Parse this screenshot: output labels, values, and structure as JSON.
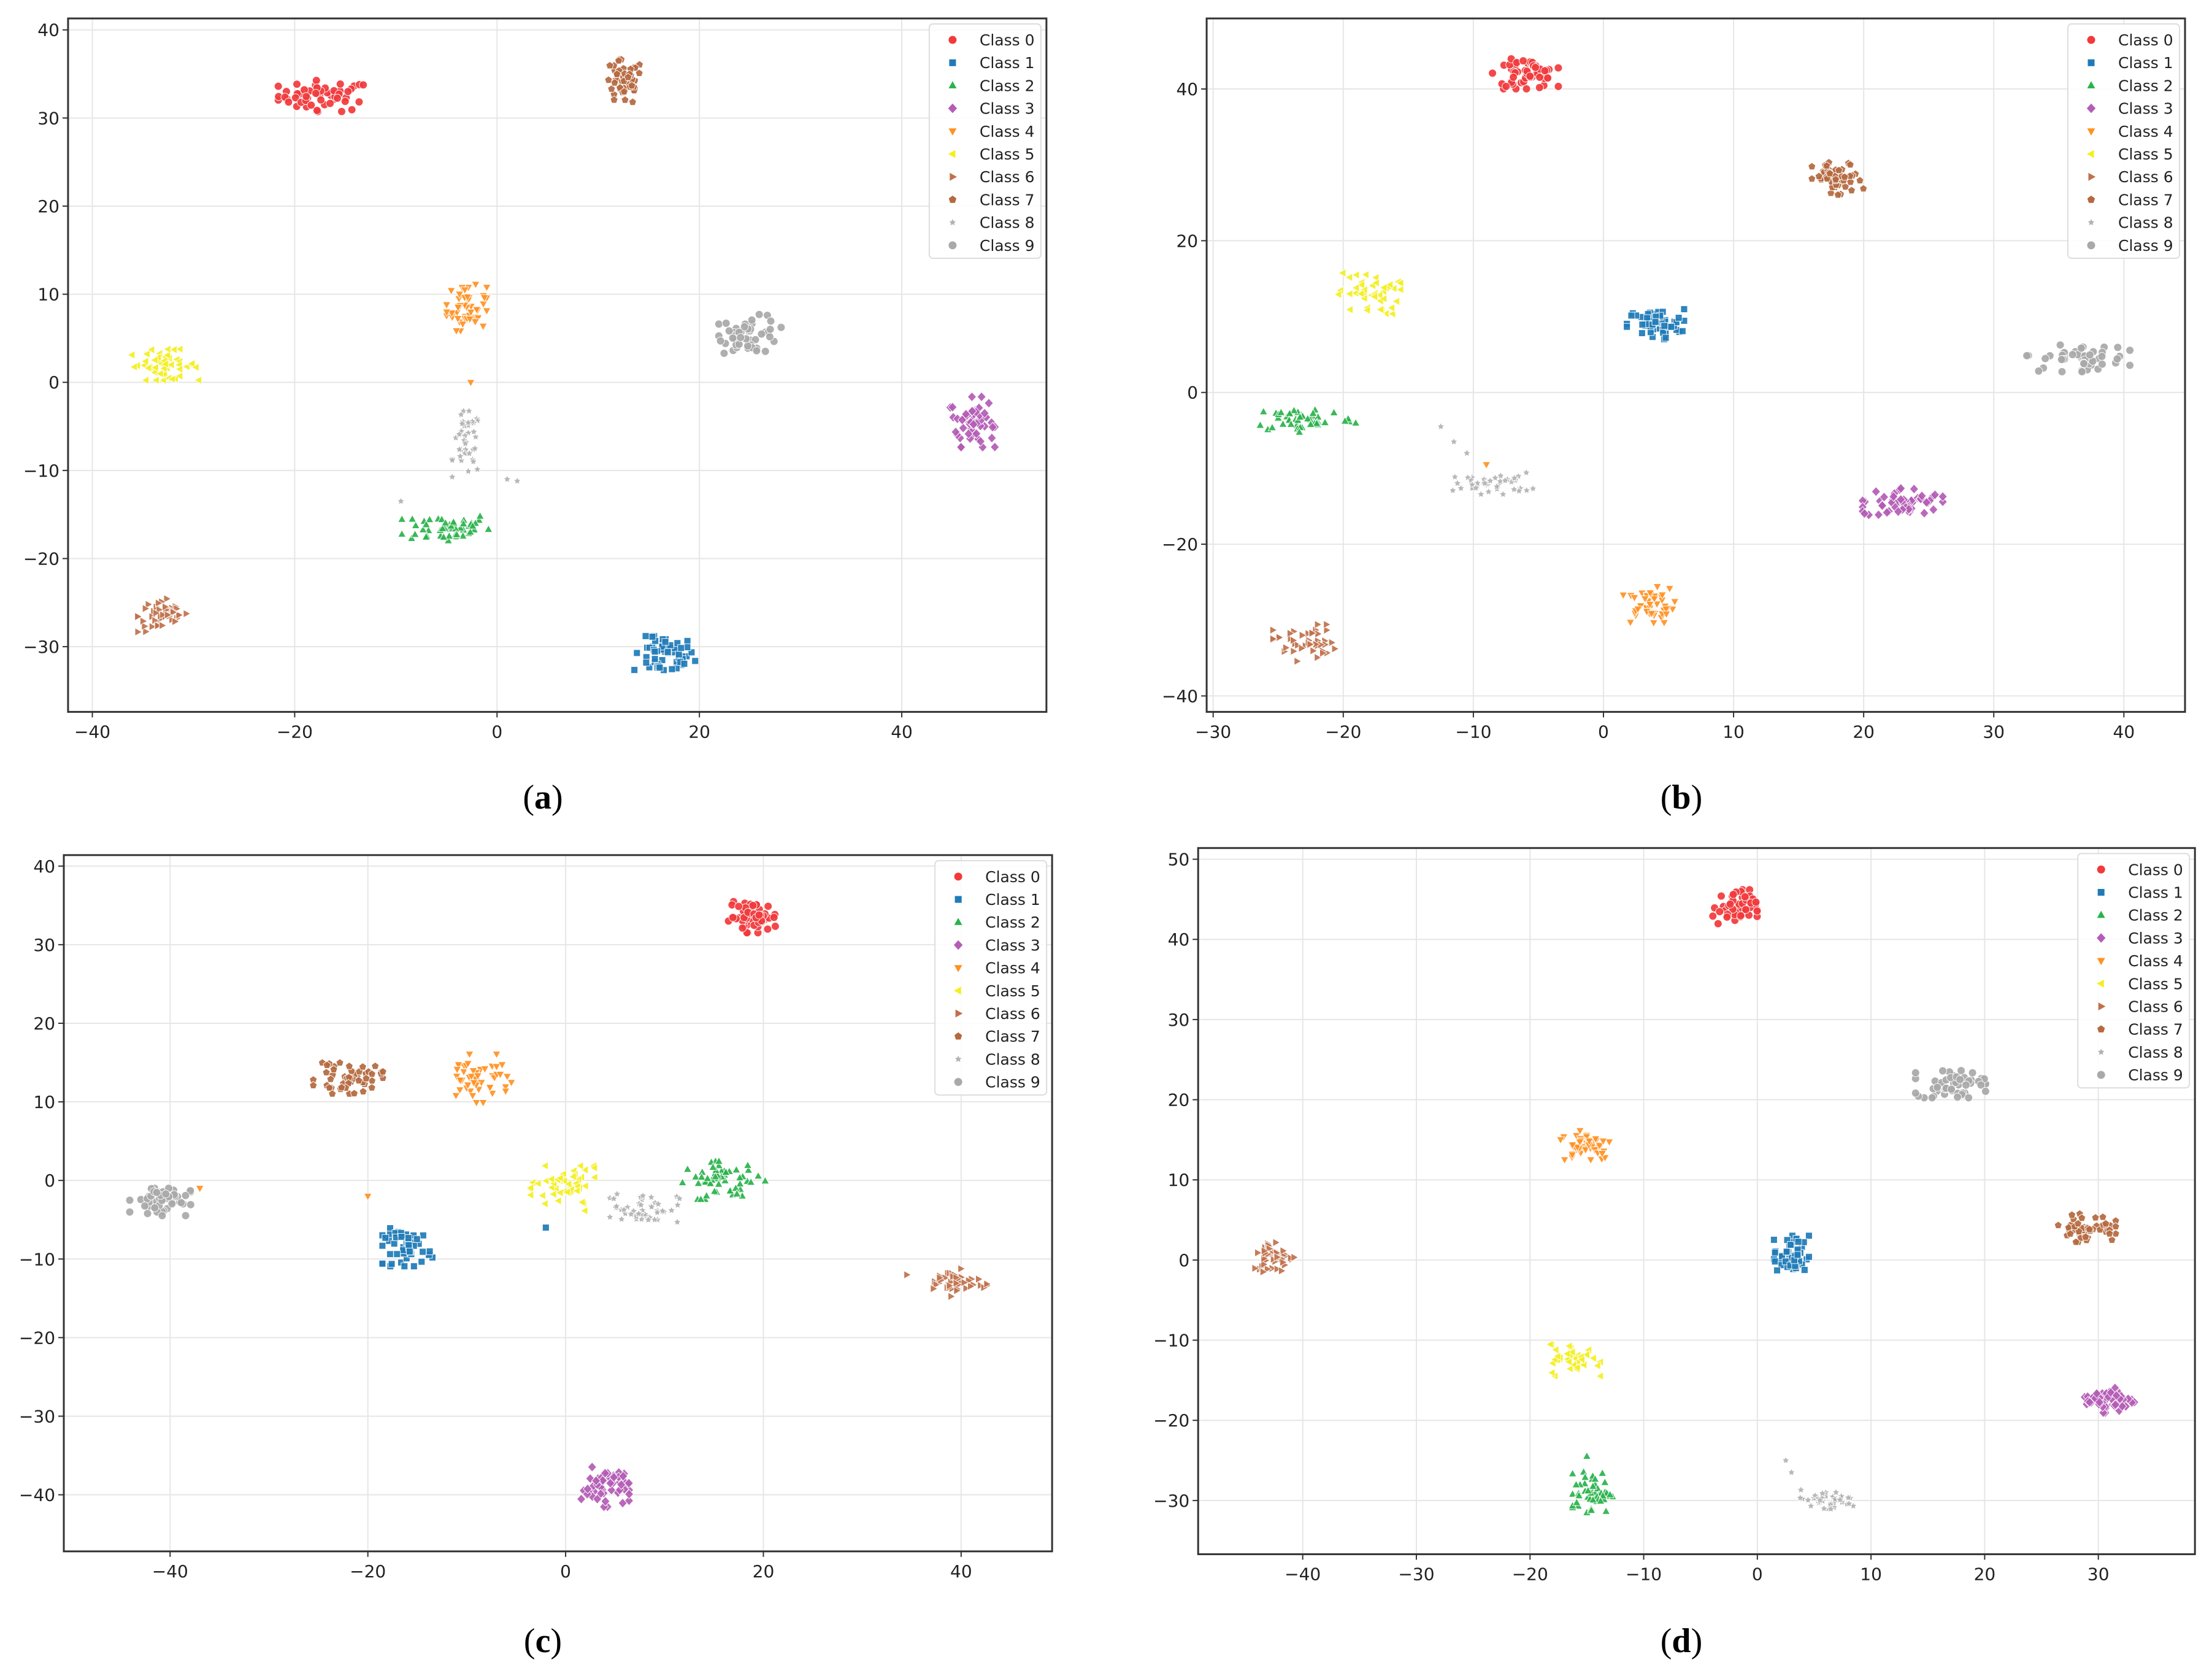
{
  "captions": {
    "a": "(a)",
    "b": "(b)",
    "c": "(c)",
    "d": "(d)"
  },
  "legend": {
    "labels": [
      "Class 0",
      "Class 1",
      "Class 2",
      "Class 3",
      "Class 4",
      "Class 5",
      "Class 6",
      "Class 7",
      "Class 8",
      "Class 9"
    ],
    "markers": [
      "circle",
      "square",
      "triangle-up",
      "diamond",
      "triangle-down",
      "triangle-left",
      "triangle-right",
      "pentagon",
      "star",
      "circle"
    ],
    "colors": [
      "#f2393b",
      "#1f7bb8",
      "#2ab34b",
      "#b45cb6",
      "#ff9222",
      "#f4ef1f",
      "#c0714b",
      "#b5693e",
      "#b3b3b3",
      "#a9a9a9"
    ],
    "placement": "top-right"
  },
  "chart_data": [
    {
      "type": "scatter",
      "panel": "a",
      "grid": true,
      "legend": "top-right",
      "xlim": [
        -42.4,
        54.3
      ],
      "ylim": [
        -37.4,
        41.3
      ],
      "xticks": [
        -40,
        -20,
        0,
        20,
        40
      ],
      "xtick_labels": [
        "−40",
        "−20",
        "0",
        "20",
        "40"
      ],
      "yticks": [
        -30,
        -20,
        -10,
        0,
        10,
        20,
        30,
        40
      ],
      "ytick_labels": [
        "−30",
        "−20",
        "−10",
        "0",
        "10",
        "20",
        "30",
        "40"
      ],
      "clusters": [
        {
          "class": 0,
          "center": [
            -17,
            32.5
          ],
          "spread": [
            4.2,
            1.6
          ],
          "n": 55
        },
        {
          "class": 1,
          "center": [
            16.5,
            -31
          ],
          "spread": [
            2.8,
            2.0
          ],
          "n": 55
        },
        {
          "class": 2,
          "center": [
            -5,
            -16.5
          ],
          "spread": [
            4.0,
            1.6
          ],
          "n": 50
        },
        {
          "class": 3,
          "center": [
            47,
            -4.5
          ],
          "spread": [
            2.0,
            2.6
          ],
          "n": 55
        },
        {
          "class": 4,
          "center": [
            -3,
            8.5
          ],
          "spread": [
            1.8,
            2.4
          ],
          "n": 50
        },
        {
          "class": 5,
          "center": [
            -33,
            2
          ],
          "spread": [
            3.2,
            1.6
          ],
          "n": 50
        },
        {
          "class": 6,
          "center": [
            -33,
            -26.5
          ],
          "spread": [
            2.3,
            1.8
          ],
          "n": 45
        },
        {
          "class": 7,
          "center": [
            12.5,
            34
          ],
          "spread": [
            1.8,
            2.4
          ],
          "n": 50
        },
        {
          "class": 8,
          "center": [
            -3,
            -7
          ],
          "spread": [
            1.3,
            3.4
          ],
          "n": 40
        },
        {
          "class": 9,
          "center": [
            25,
            5.5
          ],
          "spread": [
            2.8,
            2.0
          ],
          "n": 50
        }
      ],
      "outliers": [
        {
          "class": 4,
          "x": -2.6,
          "y": 0
        },
        {
          "class": 8,
          "x": 1,
          "y": -11
        },
        {
          "class": 8,
          "x": 2,
          "y": -11.2
        },
        {
          "class": 8,
          "x": -9.5,
          "y": -13.5
        }
      ]
    },
    {
      "type": "scatter",
      "panel": "b",
      "grid": true,
      "legend": "top-right",
      "xlim": [
        -30.5,
        44.7
      ],
      "ylim": [
        -42.1,
        49.3
      ],
      "xticks": [
        -30,
        -20,
        -10,
        0,
        10,
        20,
        30,
        40
      ],
      "xtick_labels": [
        "−30",
        "−20",
        "−10",
        "0",
        "10",
        "20",
        "30",
        "40"
      ],
      "yticks": [
        -40,
        -20,
        0,
        20,
        40
      ],
      "ytick_labels": [
        "−40",
        "−20",
        "0",
        "20",
        "40"
      ],
      "clusters": [
        {
          "class": 0,
          "center": [
            -6,
            42
          ],
          "spread": [
            2.3,
            1.8
          ],
          "n": 55
        },
        {
          "class": 1,
          "center": [
            4,
            9
          ],
          "spread": [
            2.0,
            1.8
          ],
          "n": 55
        },
        {
          "class": 2,
          "center": [
            -23,
            -3.5
          ],
          "spread": [
            3.6,
            1.6
          ],
          "n": 50
        },
        {
          "class": 3,
          "center": [
            23,
            -14.5
          ],
          "spread": [
            2.8,
            1.8
          ],
          "n": 55
        },
        {
          "class": 4,
          "center": [
            3.5,
            -28
          ],
          "spread": [
            1.8,
            2.2
          ],
          "n": 50
        },
        {
          "class": 5,
          "center": [
            -18,
            13
          ],
          "spread": [
            2.2,
            2.6
          ],
          "n": 45
        },
        {
          "class": 6,
          "center": [
            -23,
            -33
          ],
          "spread": [
            2.2,
            2.2
          ],
          "n": 45
        },
        {
          "class": 7,
          "center": [
            18,
            28
          ],
          "spread": [
            1.8,
            2.2
          ],
          "n": 50
        },
        {
          "class": 8,
          "center": [
            -8.5,
            -12
          ],
          "spread": [
            2.8,
            1.3
          ],
          "n": 40
        },
        {
          "class": 9,
          "center": [
            36.5,
            4.5
          ],
          "spread": [
            3.6,
            1.6
          ],
          "n": 50
        }
      ],
      "outliers": [
        {
          "class": 8,
          "x": -12.5,
          "y": -4.5
        },
        {
          "class": 8,
          "x": -11.5,
          "y": -6.5
        },
        {
          "class": 8,
          "x": -10.5,
          "y": -8
        },
        {
          "class": 4,
          "x": -9,
          "y": -9.5
        }
      ]
    },
    {
      "type": "scatter",
      "panel": "c",
      "grid": true,
      "legend": "top-right",
      "xlim": [
        -50.75,
        49.2
      ],
      "ylim": [
        -47.2,
        41.4
      ],
      "xticks": [
        -40,
        -20,
        0,
        20,
        40
      ],
      "xtick_labels": [
        "−40",
        "−20",
        "0",
        "20",
        "40"
      ],
      "yticks": [
        -40,
        -30,
        -20,
        -10,
        0,
        10,
        20,
        30,
        40
      ],
      "ytick_labels": [
        "−40",
        "−30",
        "−20",
        "−10",
        "0",
        "10",
        "20",
        "30",
        "40"
      ],
      "clusters": [
        {
          "class": 0,
          "center": [
            19,
            33.5
          ],
          "spread": [
            2.3,
            1.8
          ],
          "n": 55
        },
        {
          "class": 1,
          "center": [
            -16,
            -8.5
          ],
          "spread": [
            2.3,
            2.2
          ],
          "n": 50
        },
        {
          "class": 2,
          "center": [
            16,
            0
          ],
          "spread": [
            3.8,
            2.2
          ],
          "n": 55
        },
        {
          "class": 3,
          "center": [
            4,
            -39
          ],
          "spread": [
            2.2,
            2.3
          ],
          "n": 55
        },
        {
          "class": 4,
          "center": [
            -9,
            13
          ],
          "spread": [
            3.2,
            2.8
          ],
          "n": 50
        },
        {
          "class": 5,
          "center": [
            0,
            -1
          ],
          "spread": [
            3.2,
            2.6
          ],
          "n": 50
        },
        {
          "class": 6,
          "center": [
            39.5,
            -13
          ],
          "spread": [
            2.8,
            1.6
          ],
          "n": 45
        },
        {
          "class": 7,
          "center": [
            -22,
            13
          ],
          "spread": [
            3.2,
            1.8
          ],
          "n": 50
        },
        {
          "class": 8,
          "center": [
            8,
            -3.5
          ],
          "spread": [
            3.2,
            1.8
          ],
          "n": 45
        },
        {
          "class": 9,
          "center": [
            -41,
            -2.5
          ],
          "spread": [
            2.8,
            1.8
          ],
          "n": 50
        }
      ],
      "outliers": [
        {
          "class": 4,
          "x": -20,
          "y": -2
        },
        {
          "class": 4,
          "x": -37,
          "y": -1
        },
        {
          "class": 6,
          "x": 34.5,
          "y": -12
        },
        {
          "class": 1,
          "x": -2,
          "y": -6
        }
      ]
    },
    {
      "type": "scatter",
      "panel": "d",
      "grid": true,
      "legend": "top-right",
      "xlim": [
        -49.2,
        38.5
      ],
      "ylim": [
        -36.7,
        51.4
      ],
      "xticks": [
        -40,
        -30,
        -20,
        -10,
        0,
        10,
        20,
        30
      ],
      "xtick_labels": [
        "−40",
        "−30",
        "−20",
        "−10",
        "0",
        "10",
        "20",
        "30"
      ],
      "yticks": [
        -30,
        -20,
        -10,
        0,
        10,
        20,
        30,
        40,
        50
      ],
      "ytick_labels": [
        "−30",
        "−20",
        "−10",
        "0",
        "10",
        "20",
        "30",
        "40",
        "50"
      ],
      "clusters": [
        {
          "class": 0,
          "center": [
            -2,
            44
          ],
          "spread": [
            1.8,
            2.0
          ],
          "n": 55
        },
        {
          "class": 1,
          "center": [
            3,
            0.5
          ],
          "spread": [
            1.4,
            2.3
          ],
          "n": 50
        },
        {
          "class": 2,
          "center": [
            -14.5,
            -29
          ],
          "spread": [
            1.6,
            2.3
          ],
          "n": 50
        },
        {
          "class": 3,
          "center": [
            31,
            -17.5
          ],
          "spread": [
            2.0,
            1.4
          ],
          "n": 55
        },
        {
          "class": 4,
          "center": [
            -15,
            14.5
          ],
          "spread": [
            2.1,
            1.8
          ],
          "n": 50
        },
        {
          "class": 5,
          "center": [
            -16,
            -12.5
          ],
          "spread": [
            2.0,
            1.8
          ],
          "n": 45
        },
        {
          "class": 6,
          "center": [
            -42.5,
            0.5
          ],
          "spread": [
            1.8,
            1.8
          ],
          "n": 45
        },
        {
          "class": 7,
          "center": [
            29,
            4
          ],
          "spread": [
            2.3,
            1.6
          ],
          "n": 50
        },
        {
          "class": 8,
          "center": [
            6,
            -30
          ],
          "spread": [
            2.8,
            1.2
          ],
          "n": 40
        },
        {
          "class": 9,
          "center": [
            17,
            22
          ],
          "spread": [
            2.8,
            1.6
          ],
          "n": 50
        }
      ],
      "outliers": [
        {
          "class": 8,
          "x": 2.5,
          "y": -25
        },
        {
          "class": 8,
          "x": 3,
          "y": -26.5
        },
        {
          "class": 2,
          "x": -15,
          "y": -24.5
        }
      ]
    }
  ]
}
